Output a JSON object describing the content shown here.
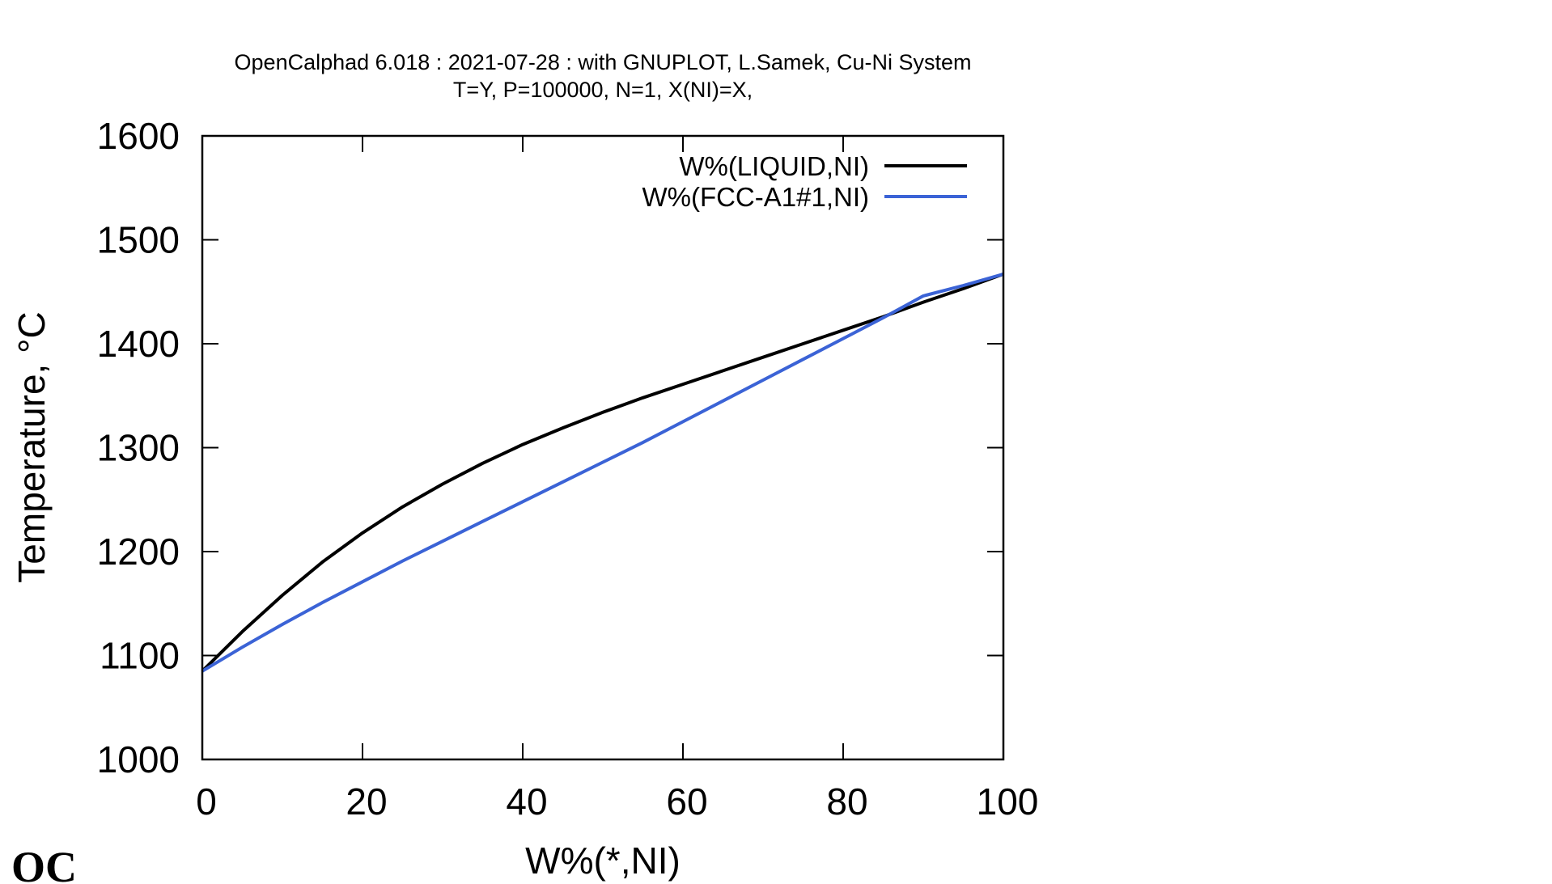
{
  "chart_data": {
    "type": "line",
    "title_lines": [
      "OpenCalphad   6.018 :  2021-07-28 : with GNUPLOT, L.Samek, Cu-Ni System",
      "T=Y,  P=100000, N=1, X(NI)=X,"
    ],
    "xlabel": "W%(*,NI)",
    "ylabel": "Temperature, °C",
    "xlim": [
      0,
      100
    ],
    "ylim": [
      1000,
      1600
    ],
    "xticks": [
      0,
      20,
      40,
      60,
      80,
      100
    ],
    "yticks": [
      1000,
      1100,
      1200,
      1300,
      1400,
      1500,
      1600
    ],
    "grid": false,
    "legend_position": "top-right",
    "series": [
      {
        "name": "W%(LIQUID,NI)",
        "color": "#000000",
        "x": [
          0,
          5,
          10,
          15,
          20,
          25,
          30,
          35,
          40,
          45,
          50,
          55,
          60,
          65,
          70,
          75,
          80,
          85,
          90,
          95,
          100
        ],
        "y": [
          1085,
          1123,
          1158,
          1190,
          1218,
          1243,
          1265,
          1285,
          1303,
          1319,
          1334,
          1348,
          1361,
          1374,
          1387,
          1400,
          1413,
          1426,
          1440,
          1453,
          1467
        ]
      },
      {
        "name": "W%(FCC-A1#1,NI)",
        "color": "#3b63d6",
        "x": [
          0,
          5,
          10,
          15,
          20,
          25,
          30,
          35,
          40,
          45,
          50,
          55,
          60,
          65,
          70,
          75,
          80,
          85,
          90,
          95,
          100
        ],
        "y": [
          1085,
          1108,
          1130,
          1151,
          1171,
          1191,
          1210,
          1229,
          1248,
          1267,
          1286,
          1305,
          1325,
          1345,
          1365,
          1385,
          1405,
          1425,
          1446,
          1456,
          1467
        ]
      }
    ]
  },
  "logo": {
    "text": "OC"
  }
}
